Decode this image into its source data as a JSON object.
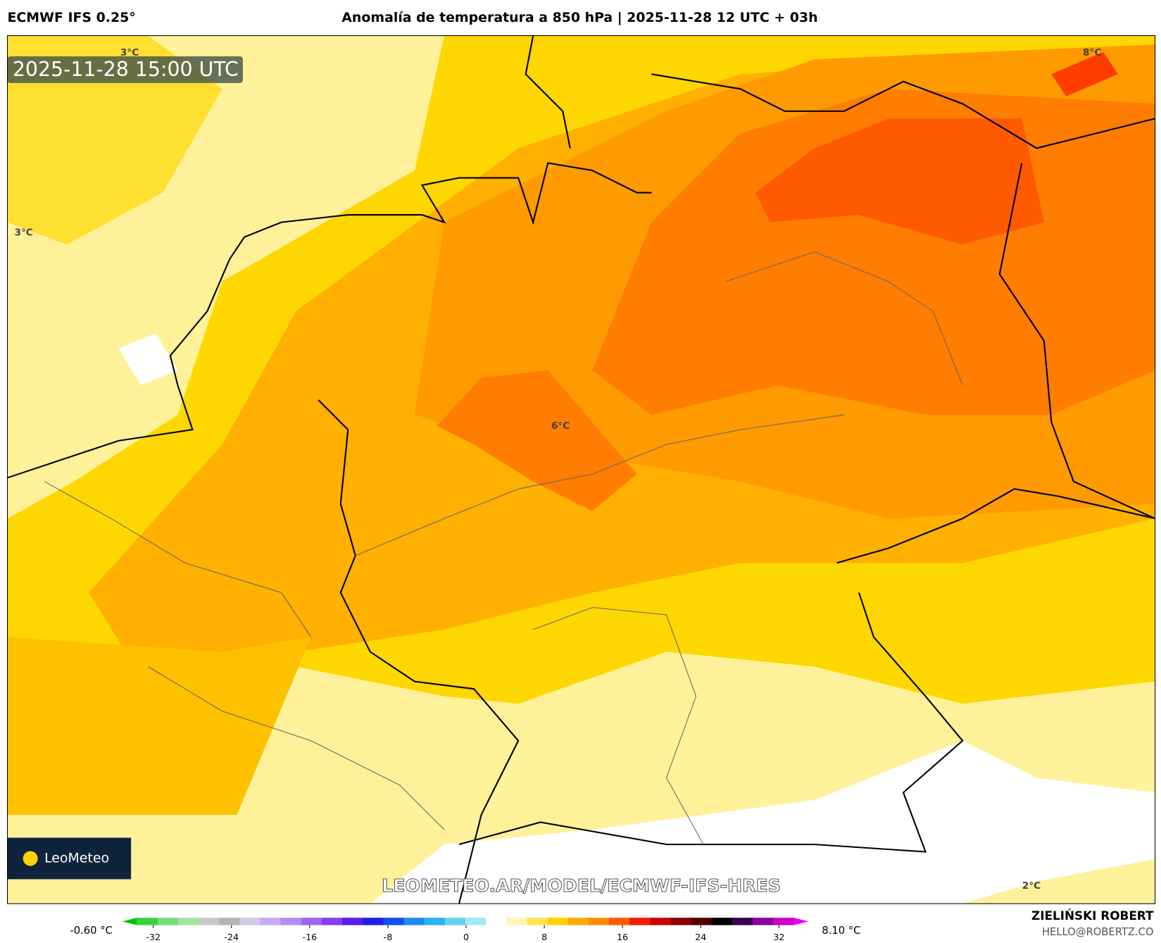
{
  "header": {
    "model": "ECMWF IFS 0.25°",
    "title": "Anomalía de temperatura a 850 hPa | 2025-11-28 12 UTC + 03h"
  },
  "map": {
    "timestamp": "2025-11-28 15:00 UTC",
    "contour_labels": [
      "3°C",
      "3°C",
      "6°C",
      "8°C",
      "2°C"
    ],
    "watermark": "LEOMETEO.AR/MODEL/ECMWF-IFS-HRES",
    "logo": "LeoMeteo"
  },
  "colorbar": {
    "min_label": "-0.60 °C",
    "max_label": "8.10 °C",
    "lim": [
      -32,
      32
    ],
    "ticks": [
      -32,
      -24,
      -16,
      -8,
      0,
      8,
      16,
      24,
      32
    ],
    "colors": [
      "#00c800",
      "#3cd23c",
      "#78dc78",
      "#a0e6a0",
      "#c8c8c8",
      "#b4b4b4",
      "#d2c8e6",
      "#c8aaf0",
      "#b48cf0",
      "#a064f0",
      "#8c3cf0",
      "#5a1ee6",
      "#1e1ee6",
      "#1450f0",
      "#1e8cf0",
      "#28b4f0",
      "#64d2f0",
      "#a0e6f5",
      "#ffffff",
      "#fff5b4",
      "#ffe650",
      "#ffd200",
      "#ffaa00",
      "#ff8c00",
      "#ff5a00",
      "#f01e00",
      "#c80000",
      "#8c0000",
      "#500000",
      "#000000",
      "#3c0050",
      "#8c00a0",
      "#c800c8",
      "#f000f0"
    ]
  },
  "footer": {
    "author": "ZIELIŃSKI ROBERT",
    "email": "HELLO@ROBERTZ.CO"
  }
}
